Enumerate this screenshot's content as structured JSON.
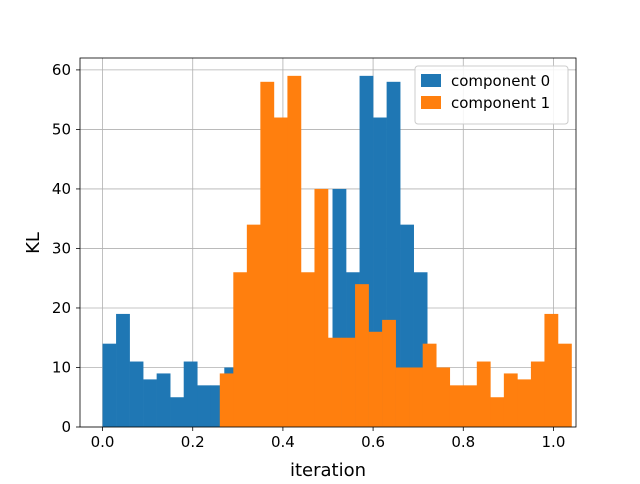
{
  "chart_data": {
    "type": "bar",
    "title": "",
    "xlabel": "iteration",
    "ylabel": "KL",
    "xlim": [
      -0.05,
      1.05
    ],
    "ylim": [
      0,
      62
    ],
    "xticks": [
      0.0,
      0.2,
      0.4,
      0.6,
      0.8,
      1.0
    ],
    "xtick_labels": [
      "0.0",
      "0.2",
      "0.4",
      "0.6",
      "0.8",
      "1.0"
    ],
    "yticks": [
      0,
      10,
      20,
      30,
      40,
      50,
      60
    ],
    "ytick_labels": [
      "0",
      "10",
      "20",
      "30",
      "40",
      "50",
      "60"
    ],
    "grid": true,
    "legend_position": "top-right",
    "series": [
      {
        "name": "component 0",
        "color": "#1f77b4",
        "bin_start": 0.0,
        "bin_width": 0.03,
        "values": [
          14,
          19,
          11,
          8,
          9,
          5,
          11,
          7,
          7,
          10,
          0,
          0,
          0,
          0,
          0,
          0,
          0,
          40,
          26,
          59,
          52,
          58,
          34,
          26,
          9,
          0,
          0,
          0,
          0,
          0,
          0,
          0,
          0,
          0
        ]
      },
      {
        "name": "component 1",
        "color": "#ff7f0e",
        "bin_start": 0.26,
        "bin_width": 0.03,
        "values": [
          9,
          26,
          34,
          58,
          52,
          59,
          26,
          40,
          15,
          15,
          24,
          16,
          18,
          10,
          10,
          14,
          10,
          7,
          7,
          11,
          5,
          9,
          8,
          11,
          19,
          14
        ]
      }
    ]
  }
}
